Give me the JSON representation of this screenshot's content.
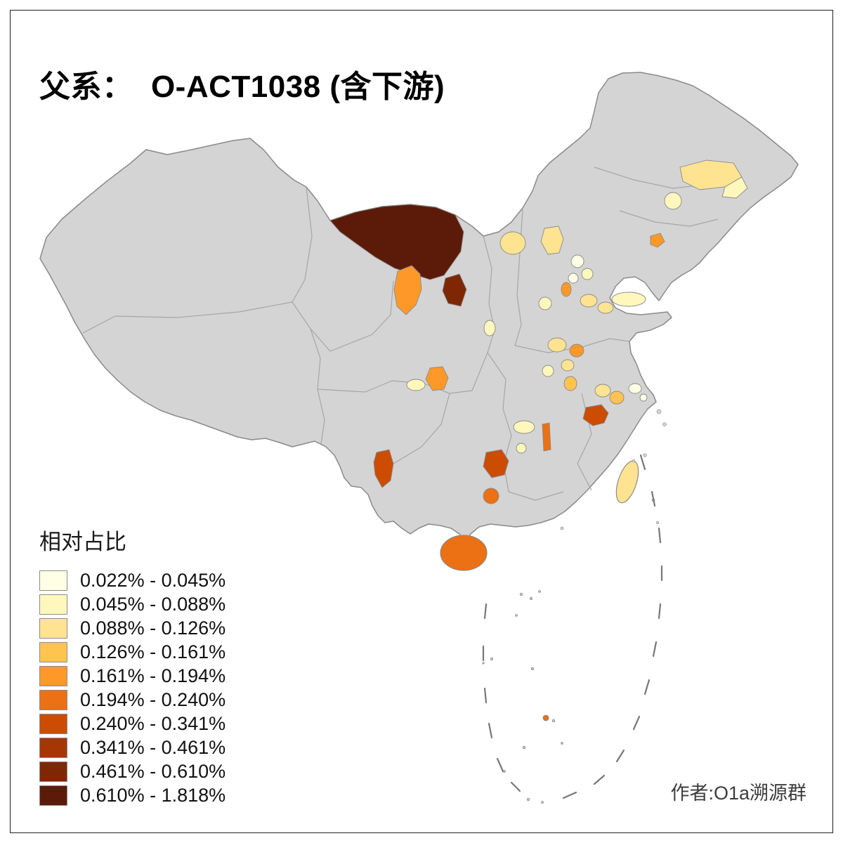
{
  "title": "父系：  O-ACT1038 (含下游)",
  "legend": {
    "title": "相对占比",
    "items": [
      "0.022% - 0.045%",
      "0.045% - 0.088%",
      "0.088% - 0.126%",
      "0.126% - 0.161%",
      "0.161% - 0.194%",
      "0.194% - 0.240%",
      "0.240% - 0.341%",
      "0.341% - 0.461%",
      "0.461% - 0.610%",
      "0.610% - 1.818%"
    ]
  },
  "author": "作者:O1a溯源群",
  "map": {
    "background": "#FFFFFF",
    "land_color": "#D4D4D4",
    "border_color": "#8A8A8A",
    "province_border_color": "#A6A6A6",
    "dash_line_color": "#777777",
    "palette": [
      "#FFFFE5",
      "#FFF7BC",
      "#FEE391",
      "#FEC44F",
      "#FE9929",
      "#EC7014",
      "#CC4C02",
      "#A63603",
      "#7F2704",
      "#5C1B09"
    ],
    "regions": {
      "nw_large": 9,
      "nw_small": 8,
      "gansu_mid": 4,
      "ne_1": 2,
      "ne_2": 1,
      "ne_3": 1,
      "liaoning": 4,
      "inner_mongolia_mid": 2,
      "hebei_north": 2,
      "beijing_1": 0,
      "beijing_2": 1,
      "beijing_3": 0,
      "tianjin": 4,
      "hebei_mid": 1,
      "hebei_s1": 2,
      "hebei_s2": 2,
      "shandong_e": 1,
      "shanxi_s": 1,
      "henan_1": 2,
      "henan_2": 4,
      "henan_3": 2,
      "hubei_n": 1,
      "anhui_w": 3,
      "anhui_e": 2,
      "jiangsu": 3,
      "shanghai_1": 0,
      "shanghai_2": 0,
      "hubei_dark": 6,
      "hunan_strip": 5,
      "hunan_1": 1,
      "hunan_2": 1,
      "sichuan_1": 4,
      "sichuan_2": 1,
      "yunnan": 6,
      "guizhou_1": 6,
      "guizhou_2": 5,
      "hainan": 5,
      "taiwan": 2,
      "sea_islet": 5
    }
  }
}
